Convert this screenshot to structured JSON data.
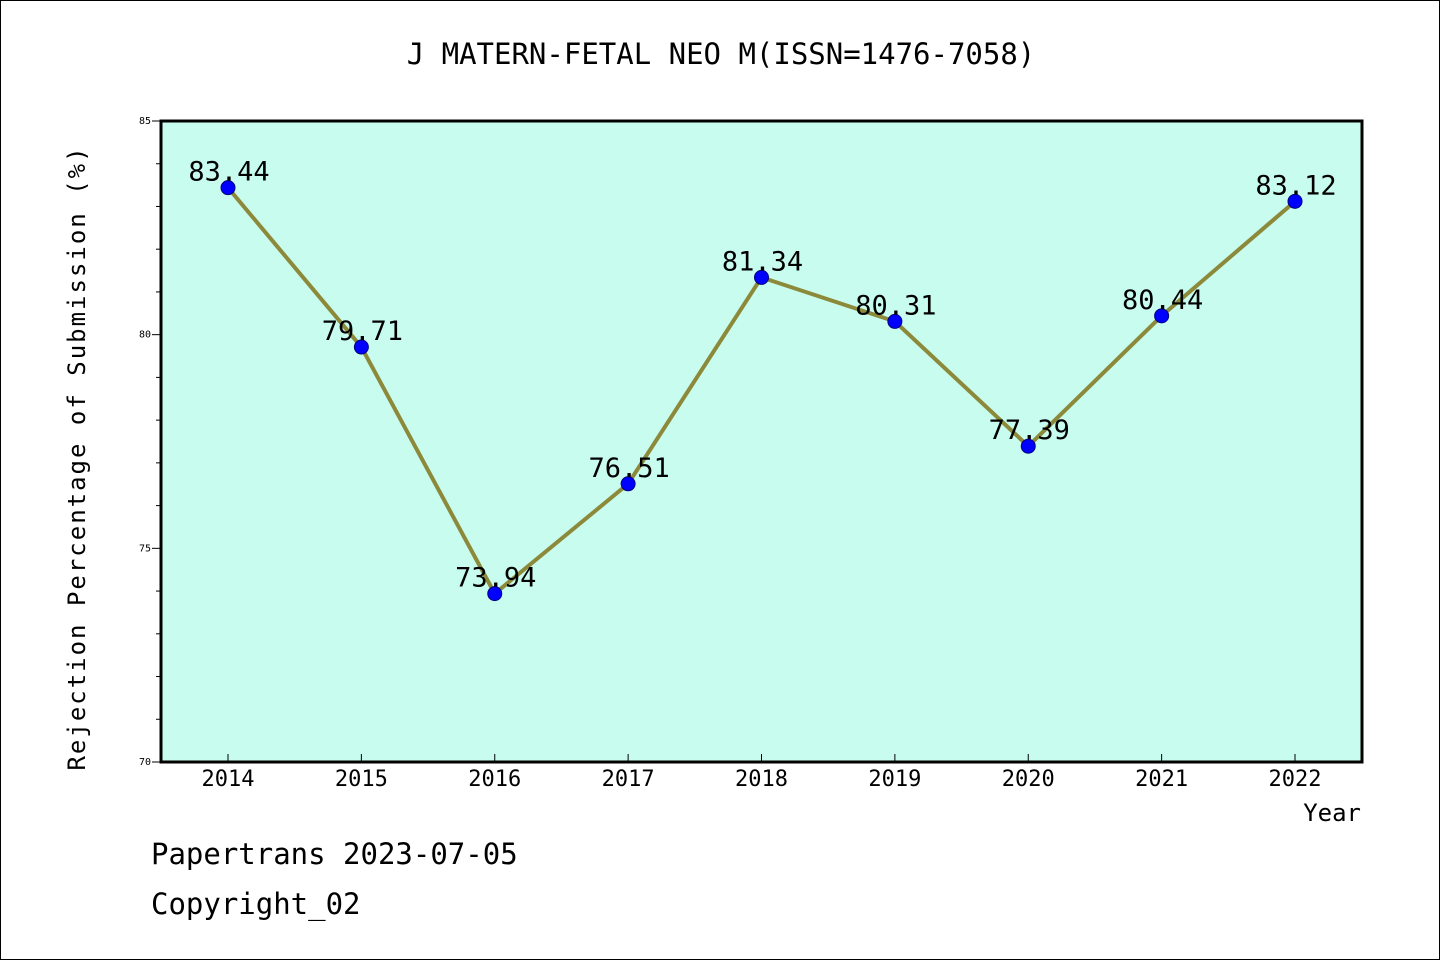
{
  "title": "J MATERN-FETAL NEO M(ISSN=1476-7058)",
  "footer": {
    "date_line": "Papertrans 2023-07-05",
    "copyright_line": "Copyright_02"
  },
  "colors": {
    "plot_background": "#c8fcee",
    "line": "#8c8a3a",
    "marker": "#0000ff",
    "axis": "#000000"
  },
  "chart_data": {
    "type": "line",
    "title": "J MATERN-FETAL NEO M(ISSN=1476-7058)",
    "xlabel": "Year",
    "ylabel": "Rejection Percentage of Submission (%)",
    "categories": [
      "2014",
      "2015",
      "2016",
      "2017",
      "2018",
      "2019",
      "2020",
      "2021",
      "2022"
    ],
    "values": [
      83.44,
      79.71,
      73.94,
      76.51,
      81.34,
      80.31,
      77.39,
      80.44,
      83.12
    ],
    "data_labels": [
      "83.44",
      "79.71",
      "73.94",
      "76.51",
      "81.34",
      "80.31",
      "77.39",
      "80.44",
      "83.12"
    ],
    "ylim": [
      70,
      85
    ],
    "y_major_ticks": [
      70,
      75,
      80,
      85
    ],
    "y_minor_step": 1,
    "grid": false,
    "legend": "none"
  }
}
